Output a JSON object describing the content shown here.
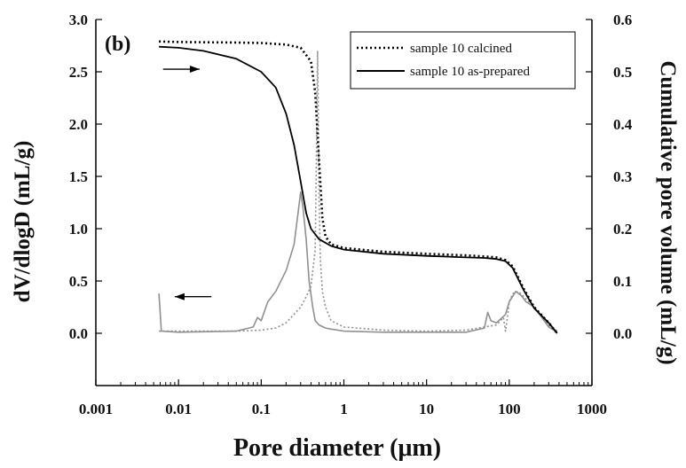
{
  "chart_data": {
    "type": "line",
    "panel_label": "(b)",
    "xlabel": "Pore diameter  (μm)",
    "ylabel_left": "dV/dlogD  (mL/g)",
    "ylabel_right": "Cumulative pore volume  (mL/g)",
    "x_scale": "log",
    "xlim": [
      0.001,
      1000
    ],
    "ylim_left": [
      -0.5,
      3.0
    ],
    "ylim_right": [
      -0.1,
      0.6
    ],
    "x_ticks": [
      "0.001",
      "0.01",
      "0.1",
      "1",
      "10",
      "100",
      "1000"
    ],
    "x_tick_values": [
      0.001,
      0.01,
      0.1,
      1,
      10,
      100,
      1000
    ],
    "y_ticks_left": [
      "0.0",
      "0.5",
      "1.0",
      "1.5",
      "2.0",
      "2.5",
      "3.0"
    ],
    "y_tick_values_left": [
      0.0,
      0.5,
      1.0,
      1.5,
      2.0,
      2.5,
      3.0
    ],
    "y_ticks_right": [
      "0.0",
      "0.1",
      "0.2",
      "0.3",
      "0.4",
      "0.5",
      "0.6"
    ],
    "y_tick_values_right": [
      0.0,
      0.1,
      0.2,
      0.3,
      0.4,
      0.5,
      0.6
    ],
    "grid": false,
    "legend_position": "top-right",
    "legend": [
      "sample 10 calcined",
      "sample 10 as-prepared"
    ],
    "series": [
      {
        "name": "sample 10 calcined",
        "role": "cumulative",
        "axis": "right",
        "style": "dotted",
        "color": "#000000",
        "x": [
          0.0058,
          0.01,
          0.05,
          0.1,
          0.2,
          0.3,
          0.4,
          0.45,
          0.5,
          0.55,
          0.6,
          0.7,
          1,
          3,
          10,
          30,
          50,
          70,
          90,
          110,
          130,
          150,
          200,
          300,
          380
        ],
        "y": [
          0.558,
          0.557,
          0.556,
          0.555,
          0.552,
          0.546,
          0.52,
          0.46,
          0.33,
          0.22,
          0.185,
          0.17,
          0.163,
          0.156,
          0.152,
          0.149,
          0.147,
          0.145,
          0.14,
          0.128,
          0.105,
          0.085,
          0.05,
          0.02,
          0.0
        ]
      },
      {
        "name": "sample 10 as-prepared",
        "role": "cumulative",
        "axis": "right",
        "style": "solid",
        "color": "#000000",
        "x": [
          0.0058,
          0.01,
          0.02,
          0.05,
          0.1,
          0.15,
          0.2,
          0.25,
          0.3,
          0.35,
          0.4,
          0.5,
          0.7,
          1,
          3,
          10,
          30,
          50,
          70,
          90,
          110,
          130,
          150,
          200,
          300,
          380
        ],
        "y": [
          0.548,
          0.546,
          0.54,
          0.525,
          0.5,
          0.47,
          0.42,
          0.36,
          0.29,
          0.23,
          0.2,
          0.18,
          0.167,
          0.16,
          0.152,
          0.148,
          0.145,
          0.144,
          0.142,
          0.138,
          0.125,
          0.102,
          0.082,
          0.048,
          0.02,
          0.0
        ]
      },
      {
        "name": "sample 10 calcined",
        "role": "distribution",
        "axis": "left",
        "style": "dotted",
        "color": "#909090",
        "x": [
          0.0058,
          0.05,
          0.1,
          0.15,
          0.2,
          0.3,
          0.35,
          0.4,
          0.45,
          0.47,
          0.48,
          0.49,
          0.5,
          0.52,
          0.55,
          0.6,
          0.7,
          1,
          3,
          10,
          30,
          70,
          85,
          90,
          95,
          100,
          110,
          130,
          150,
          200,
          300,
          380
        ],
        "y": [
          0.02,
          0.02,
          0.03,
          0.05,
          0.1,
          0.25,
          0.35,
          0.45,
          0.8,
          2.0,
          2.7,
          2.2,
          1.3,
          0.7,
          0.4,
          0.25,
          0.12,
          0.06,
          0.03,
          0.02,
          0.03,
          0.08,
          0.15,
          0.02,
          0.15,
          0.3,
          0.38,
          0.4,
          0.35,
          0.25,
          0.08,
          0.02
        ]
      },
      {
        "name": "sample 10 as-prepared",
        "role": "distribution",
        "axis": "left",
        "style": "solid",
        "color": "#909090",
        "x": [
          0.0058,
          0.006,
          0.0062,
          0.01,
          0.05,
          0.08,
          0.09,
          0.1,
          0.12,
          0.15,
          0.2,
          0.25,
          0.3,
          0.32,
          0.35,
          0.38,
          0.42,
          0.45,
          0.5,
          0.6,
          0.7,
          1,
          3,
          10,
          30,
          50,
          55,
          60,
          70,
          90,
          100,
          120,
          140,
          160,
          200,
          300,
          380
        ],
        "y": [
          0.38,
          0.2,
          0.02,
          0.01,
          0.02,
          0.06,
          0.15,
          0.12,
          0.3,
          0.4,
          0.6,
          0.85,
          1.35,
          1.2,
          0.9,
          0.5,
          0.25,
          0.12,
          0.08,
          0.05,
          0.04,
          0.02,
          0.01,
          0.01,
          0.01,
          0.05,
          0.2,
          0.12,
          0.1,
          0.18,
          0.3,
          0.4,
          0.36,
          0.3,
          0.25,
          0.06,
          0.01
        ]
      }
    ],
    "annotations": [
      {
        "type": "arrow",
        "direction": "right",
        "axis": "right",
        "x_start": 0.0065,
        "x_end": 0.018,
        "y": 0.505
      },
      {
        "type": "arrow",
        "direction": "left",
        "axis": "left",
        "x_start": 0.025,
        "x_end": 0.009,
        "y": 0.35
      }
    ]
  }
}
